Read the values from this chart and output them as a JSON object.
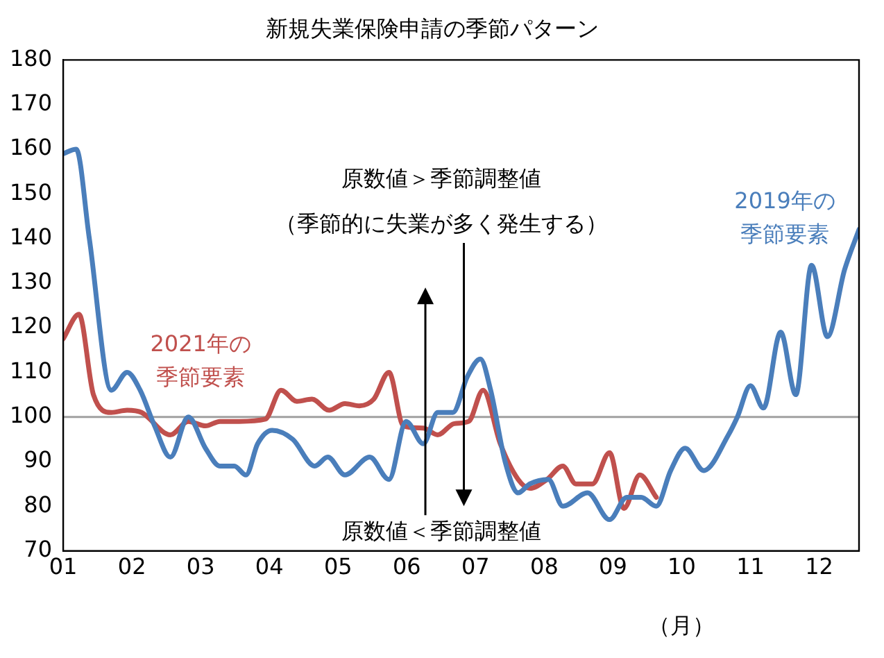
{
  "chart_data": {
    "type": "line",
    "title": "新規失業保険申請の季節パターン",
    "xlabel": "（月）",
    "annotations": [
      "原数値＞季節調整値",
      "（季節的に失業が多く発生する）",
      "原数値＜季節調整値"
    ],
    "xlim": [
      1,
      12.58
    ],
    "xticks": [
      {
        "value": 1,
        "label": "01"
      },
      {
        "value": 2,
        "label": "02"
      },
      {
        "value": 3,
        "label": "03"
      },
      {
        "value": 4,
        "label": "04"
      },
      {
        "value": 5,
        "label": "05"
      },
      {
        "value": 6,
        "label": "06"
      },
      {
        "value": 7,
        "label": "07"
      },
      {
        "value": 8,
        "label": "08"
      },
      {
        "value": 9,
        "label": "09"
      },
      {
        "value": 10,
        "label": "10"
      },
      {
        "value": 11,
        "label": "11"
      },
      {
        "value": 12,
        "label": "12"
      }
    ],
    "ylim": [
      70,
      180
    ],
    "yticks": [
      70,
      80,
      90,
      100,
      110,
      120,
      130,
      140,
      150,
      160,
      170,
      180
    ],
    "grid": false,
    "legend": false,
    "marker": "none",
    "line_style": "solid",
    "ref_lines": [
      {
        "axis": "y",
        "value": 100,
        "label": null,
        "color": "#a0a0a0"
      }
    ],
    "series": [
      {
        "name": "2019年の季節要素",
        "color": "#4a7ebb",
        "x": [
          1.0,
          1.19,
          1.38,
          1.7,
          1.93,
          2.12,
          2.33,
          2.56,
          2.82,
          3.07,
          3.28,
          3.49,
          3.66,
          3.83,
          4.04,
          4.34,
          4.66,
          4.85,
          5.1,
          5.46,
          5.74,
          5.99,
          6.24,
          6.45,
          6.67,
          6.88,
          7.07,
          7.22,
          7.43,
          7.62,
          7.79,
          8.06,
          8.27,
          8.63,
          8.95,
          9.2,
          9.41,
          9.63,
          9.84,
          10.05,
          10.32,
          10.68,
          10.81,
          11.0,
          11.19,
          11.44,
          11.66,
          11.89,
          12.12,
          12.37,
          12.58
        ],
        "values": [
          159,
          160,
          140,
          106,
          110,
          106,
          98,
          91,
          100,
          93,
          89,
          89,
          87,
          94,
          97,
          95,
          89,
          91,
          87,
          91,
          86,
          99,
          94,
          101,
          101,
          109,
          113,
          106,
          90,
          83,
          85,
          86,
          80,
          83,
          77,
          82,
          82,
          80,
          88,
          93,
          88,
          96,
          100,
          107,
          102,
          119,
          105,
          134,
          118,
          133,
          142
        ]
      },
      {
        "name": "2021年の季節要素",
        "color": "#c0504d",
        "x": [
          1.0,
          1.23,
          1.44,
          1.7,
          1.93,
          2.14,
          2.56,
          2.82,
          3.07,
          3.28,
          3.56,
          3.94,
          4.17,
          4.4,
          4.62,
          4.87,
          5.1,
          5.31,
          5.52,
          5.74,
          5.95,
          6.24,
          6.45,
          6.69,
          6.9,
          7.11,
          7.36,
          7.62,
          7.79,
          8.04,
          8.27,
          8.46,
          8.7,
          8.95,
          9.16,
          9.39,
          9.63
        ],
        "values": [
          117.5,
          123,
          105,
          101,
          101.5,
          101,
          96,
          99,
          98,
          99,
          99,
          99.5,
          106,
          103.5,
          104,
          101.5,
          103,
          102.5,
          104,
          110,
          98,
          97.5,
          96,
          98.5,
          99,
          106,
          94,
          86,
          84,
          86,
          89,
          85,
          85,
          92,
          79.5,
          87,
          82
        ]
      }
    ]
  }
}
